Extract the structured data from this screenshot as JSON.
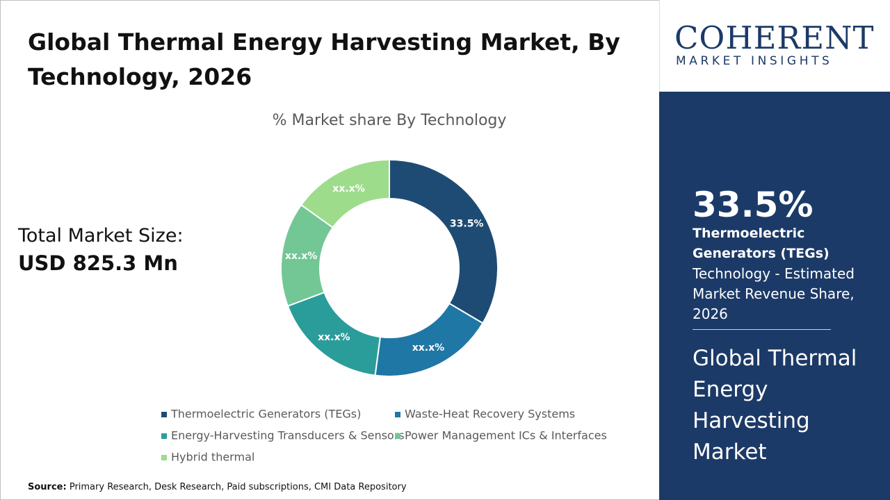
{
  "header": {
    "title": "Global Thermal Energy Harvesting Market, By Technology, 2026"
  },
  "market_size": {
    "label": "Total Market Size:",
    "value": "USD 825.3 Mn"
  },
  "chart_data": {
    "type": "donut",
    "title": "% Market share By Technology",
    "categories": [
      "Thermoelectric Generators (TEGs)",
      "Waste-Heat Recovery Systems",
      "Energy-Harvesting Transducers & Sensors",
      "Power Management ICs & Interfaces",
      "Hybrid thermal"
    ],
    "values": [
      33.5,
      18.6,
      17.2,
      15.6,
      15.1
    ],
    "value_labels": [
      "33.5%",
      "xx.x%",
      "xx.x%",
      "xx.x%",
      "xx.x%"
    ],
    "colors": [
      "#1e4b73",
      "#1f77a6",
      "#2a9d9a",
      "#72c795",
      "#9ddc8b"
    ]
  },
  "source": {
    "label": "Source:",
    "text": "Primary Research, Desk Research, Paid subscriptions, CMI Data Repository"
  },
  "logo": {
    "name": "COHERENT",
    "tagline": "MARKET INSIGHTS"
  },
  "sidebar": {
    "description": "Technology - Estimated Market Revenue Share, 2026",
    "market": "Global Thermal Energy Harvesting Market"
  }
}
